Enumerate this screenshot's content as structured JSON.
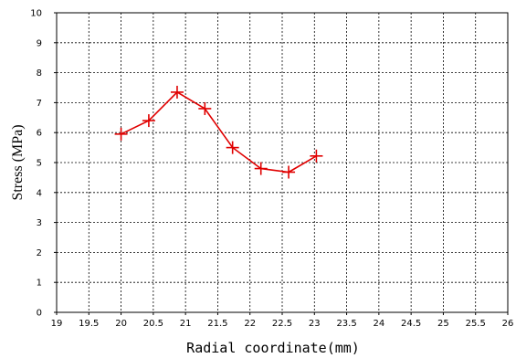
{
  "chart_data": {
    "type": "line",
    "xlabel": "Radial coordinate(mm)",
    "ylabel": "Stress (MPa)",
    "xlim": [
      19,
      26
    ],
    "ylim": [
      0,
      10
    ],
    "x_ticks": [
      "19",
      "19.5",
      "20",
      "20.5",
      "21",
      "21.5",
      "22",
      "22.5",
      "23",
      "23.5",
      "24",
      "24.5",
      "25",
      "25.5",
      "26"
    ],
    "y_ticks": [
      "0",
      "1",
      "2",
      "3",
      "4",
      "5",
      "6",
      "7",
      "8",
      "9",
      "10"
    ],
    "grid": true,
    "grid_style": "dashed",
    "marker": "plus",
    "series": [
      {
        "color": "#e00000",
        "x": [
          20.0,
          20.43,
          20.87,
          21.3,
          21.73,
          22.17,
          22.6,
          23.03
        ],
        "y": [
          5.95,
          6.4,
          7.35,
          6.8,
          5.5,
          4.8,
          4.68,
          5.22
        ]
      }
    ]
  }
}
